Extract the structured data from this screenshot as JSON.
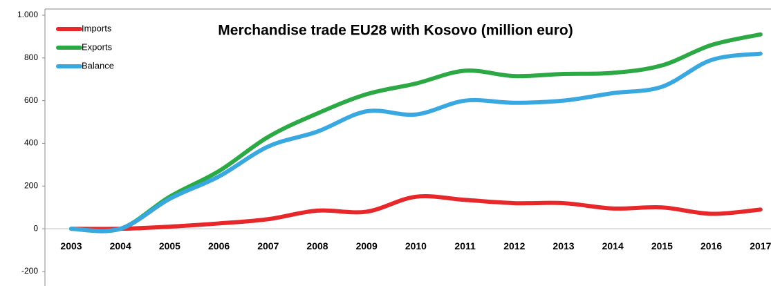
{
  "chart_data": {
    "type": "line",
    "title": "Merchandise trade EU28 with Kosovo (million euro)",
    "categories": [
      "2003",
      "2004",
      "2005",
      "2006",
      "2007",
      "2008",
      "2009",
      "2010",
      "2011",
      "2012",
      "2013",
      "2014",
      "2015",
      "2016",
      "2017"
    ],
    "series": [
      {
        "name": "Imports",
        "color": "#e8272a",
        "values": [
          0,
          0,
          10,
          25,
          45,
          85,
          80,
          150,
          135,
          120,
          120,
          95,
          100,
          70,
          90
        ]
      },
      {
        "name": "Exports",
        "color": "#2ca844",
        "values": [
          0,
          0,
          150,
          270,
          430,
          540,
          630,
          680,
          740,
          715,
          725,
          730,
          765,
          860,
          910
        ]
      },
      {
        "name": "Balance",
        "color": "#3aa8e0",
        "values": [
          0,
          0,
          140,
          245,
          385,
          455,
          550,
          535,
          600,
          590,
          600,
          635,
          665,
          790,
          820
        ]
      }
    ],
    "ylim": [
      -200,
      1000
    ],
    "yticks": [
      -200,
      0,
      200,
      400,
      600,
      800,
      {
        "value": 1000,
        "label": "1.000"
      }
    ],
    "legend": "top-left"
  }
}
